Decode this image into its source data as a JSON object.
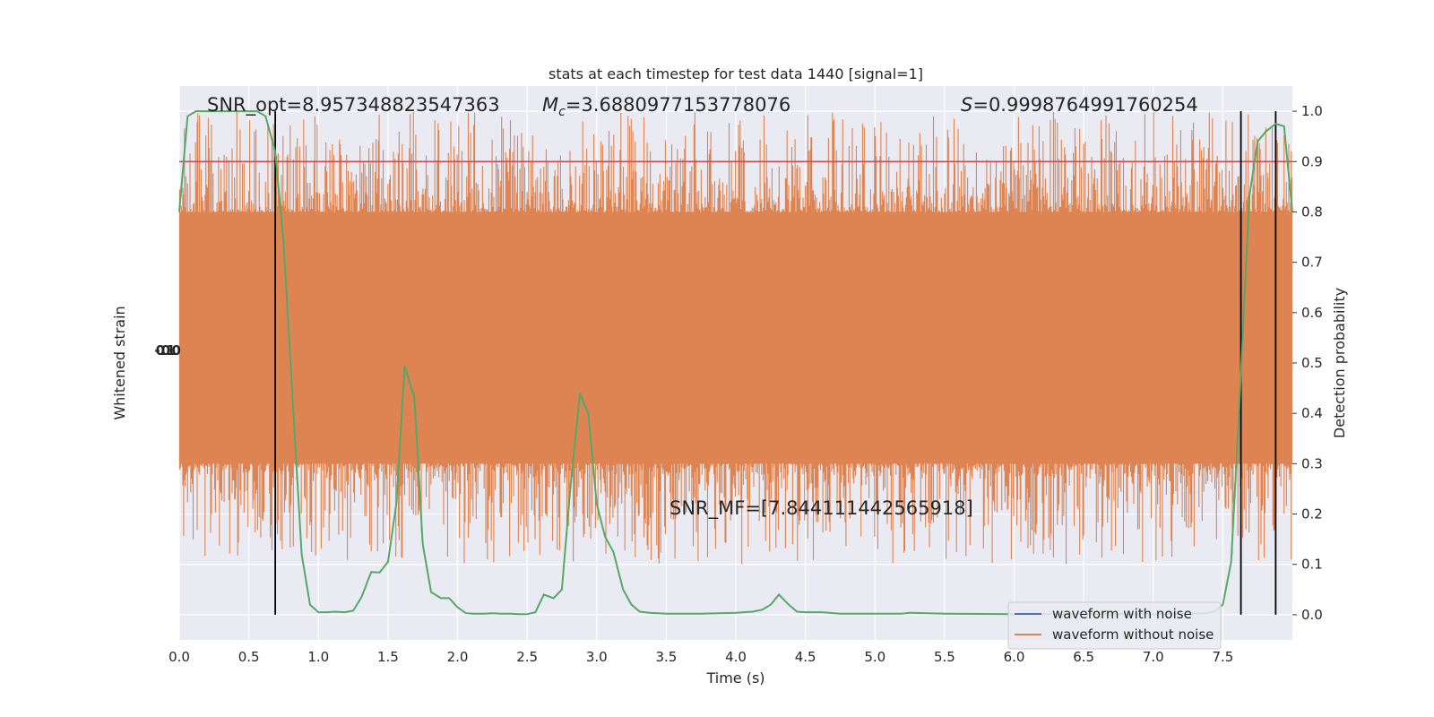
{
  "chart_data": {
    "type": "line",
    "title": "stats at each timestep for test data 1440 [signal=1]",
    "xlabel": "Time (s)",
    "ylabel_left": "Whitened strain",
    "ylabel_right": "Detection probability",
    "xlim": [
      0.0,
      8.0
    ],
    "ylim_right": [
      -0.05,
      1.05
    ],
    "x_ticks": [
      "0.0",
      "0.5",
      "1.0",
      "1.5",
      "2.0",
      "2.5",
      "3.0",
      "3.5",
      "4.0",
      "4.5",
      "5.0",
      "5.5",
      "6.0",
      "6.5",
      "7.0",
      "7.5"
    ],
    "y_ticks_right": [
      "0.0",
      "0.1",
      "0.2",
      "0.3",
      "0.4",
      "0.5",
      "0.6",
      "0.7",
      "0.8",
      "0.9",
      "1.0"
    ],
    "left_tick_labels_overlapping": "-0.0 1.0",
    "grid": true,
    "legend_position": "lower-right",
    "annotations": [
      {
        "id": "snr_opt",
        "text": "SNR_opt=8.957348823547363"
      },
      {
        "id": "mc_sym",
        "text": "M"
      },
      {
        "id": "mc_sub",
        "text": "c"
      },
      {
        "id": "mc_val",
        "text": "=3.6880977153778076"
      },
      {
        "id": "s_sym",
        "text": "S"
      },
      {
        "id": "s_val",
        "text": "=0.9998764991760254"
      },
      {
        "id": "snr_mf",
        "text": "SNR_MF=[7.844111442565918]"
      }
    ],
    "threshold": {
      "y": 0.9,
      "color": "#c44e52"
    },
    "vlines_x": [
      0.69,
      7.63,
      7.88
    ],
    "series": [
      {
        "name": "waveform with noise",
        "color": "#4c72b0",
        "style": "line",
        "values": []
      },
      {
        "name": "waveform without noise",
        "color": "#dd8452",
        "style": "noise-band",
        "band_core": [
          0.3,
          0.8
        ],
        "band_spikes": [
          0.1,
          1.0
        ]
      },
      {
        "name": "",
        "color": "#55a868",
        "style": "line",
        "x": [
          0.0,
          0.06,
          0.12,
          0.19,
          0.25,
          0.31,
          0.38,
          0.44,
          0.5,
          0.56,
          0.62,
          0.69,
          0.75,
          0.81,
          0.88,
          0.94,
          1.0,
          1.06,
          1.12,
          1.19,
          1.25,
          1.31,
          1.38,
          1.44,
          1.5,
          1.56,
          1.62,
          1.69,
          1.75,
          1.81,
          1.88,
          1.94,
          2.0,
          2.06,
          2.12,
          2.19,
          2.25,
          2.31,
          2.38,
          2.44,
          2.5,
          2.56,
          2.62,
          2.69,
          2.75,
          2.81,
          2.88,
          2.94,
          3.0,
          3.06,
          3.12,
          3.19,
          3.25,
          3.31,
          3.38,
          3.44,
          3.5,
          3.75,
          4.0,
          4.12,
          4.19,
          4.25,
          4.31,
          4.38,
          4.44,
          4.5,
          4.62,
          4.75,
          5.0,
          5.12,
          5.19,
          5.25,
          5.5,
          6.0,
          6.5,
          7.0,
          7.25,
          7.38,
          7.44,
          7.5,
          7.56,
          7.62,
          7.69,
          7.75,
          7.81,
          7.88,
          7.94,
          8.0
        ],
        "y": [
          0.8,
          0.99,
          1.0,
          1.0,
          1.0,
          1.0,
          1.0,
          1.0,
          1.0,
          1.0,
          0.99,
          0.92,
          0.74,
          0.45,
          0.12,
          0.02,
          0.005,
          0.005,
          0.006,
          0.005,
          0.008,
          0.035,
          0.085,
          0.084,
          0.105,
          0.22,
          0.495,
          0.43,
          0.14,
          0.045,
          0.033,
          0.033,
          0.015,
          0.003,
          0.002,
          0.002,
          0.003,
          0.002,
          0.002,
          0.001,
          0.001,
          0.005,
          0.04,
          0.033,
          0.05,
          0.25,
          0.44,
          0.4,
          0.22,
          0.155,
          0.125,
          0.05,
          0.02,
          0.006,
          0.004,
          0.003,
          0.002,
          0.002,
          0.004,
          0.006,
          0.01,
          0.02,
          0.04,
          0.02,
          0.006,
          0.005,
          0.005,
          0.002,
          0.002,
          0.002,
          0.002,
          0.004,
          0.002,
          0.001,
          0.001,
          0.001,
          0.002,
          0.003,
          0.006,
          0.02,
          0.105,
          0.42,
          0.83,
          0.94,
          0.96,
          0.975,
          0.97,
          0.8
        ]
      }
    ]
  }
}
